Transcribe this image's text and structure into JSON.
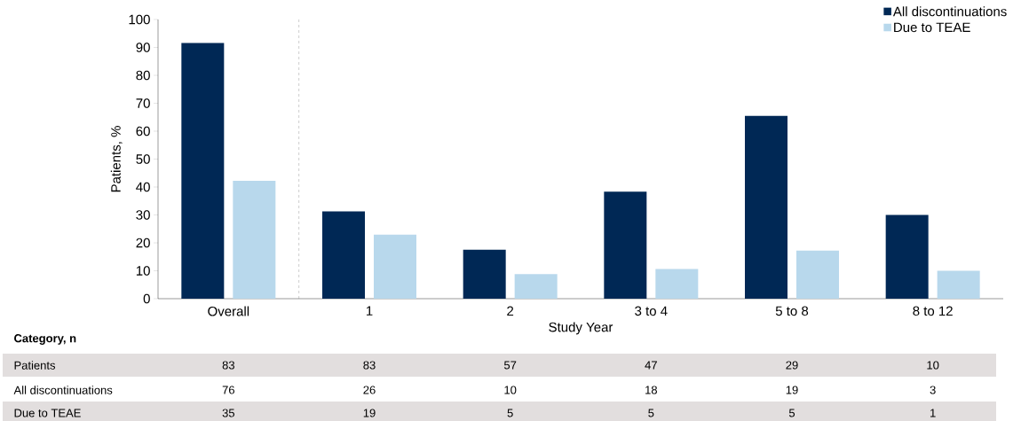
{
  "chart_data": [
    {
      "type": "bar",
      "xlabel": "Study Year",
      "ylabel": "Patients, %",
      "categories": [
        "Overall",
        "1",
        "2",
        "3 to 4",
        "5 to 8",
        "8 to 12"
      ],
      "series": [
        {
          "name": "All discontinuations",
          "color": "#002855",
          "values": [
            91.6,
            31.3,
            17.5,
            38.3,
            65.5,
            30
          ]
        },
        {
          "name": "Due to TEAE",
          "color": "#b8d8ec",
          "values": [
            42.2,
            22.9,
            8.8,
            10.6,
            17.2,
            10
          ]
        }
      ],
      "ylim": [
        0,
        100
      ],
      "yticks": [
        0,
        10,
        20,
        30,
        40,
        50,
        60,
        70,
        80,
        90,
        100
      ],
      "legend": "top right",
      "grid": false
    },
    {
      "type": "heatmap",
      "title": "Category, n",
      "data_labels": true,
      "categories": [
        null,
        null,
        null,
        null,
        null,
        null
      ],
      "y_categories": [
        "Patients",
        "All discontinuations",
        "Due to TEAE"
      ],
      "cells": [
        [
          83,
          83,
          57,
          47,
          29,
          10
        ],
        [
          76,
          26,
          10,
          18,
          19,
          3
        ],
        [
          35,
          19,
          5,
          5,
          5,
          1
        ]
      ]
    }
  ]
}
